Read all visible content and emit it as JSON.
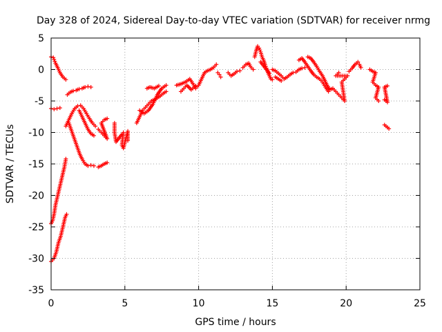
{
  "chart_data": {
    "type": "scatter",
    "title": "Day 328 of 2024, Sidereal Day-to-day VTEC variation (SDTVAR) for receiver nrmg",
    "xlabel": "GPS time / hours",
    "ylabel": "SDTVAR / TECUs",
    "xlim": [
      0,
      25
    ],
    "ylim": [
      -35,
      5
    ],
    "xticks": [
      0,
      5,
      10,
      15,
      20,
      25
    ],
    "yticks": [
      5,
      0,
      -5,
      -10,
      -15,
      -20,
      -25,
      -30,
      -35
    ],
    "grid": true,
    "marker": "+",
    "color": "#ff0000",
    "series": [
      {
        "name": "SDTVAR",
        "segments": [
          [
            [
              0.0,
              2.0
            ],
            [
              0.15,
              1.9
            ],
            [
              0.3,
              1.0
            ],
            [
              0.45,
              0.3
            ],
            [
              0.6,
              -0.5
            ],
            [
              0.8,
              -1.2
            ],
            [
              1.0,
              -1.6
            ]
          ],
          [
            [
              0.0,
              -6.2
            ],
            [
              0.2,
              -6.3
            ],
            [
              0.4,
              -6.2
            ],
            [
              0.6,
              -6.1
            ]
          ],
          [
            [
              0.0,
              -24.5
            ],
            [
              0.1,
              -24.0
            ],
            [
              0.2,
              -23.0
            ],
            [
              0.3,
              -21.5
            ],
            [
              0.45,
              -20.0
            ],
            [
              0.6,
              -18.5
            ],
            [
              0.75,
              -17.0
            ],
            [
              0.9,
              -15.5
            ],
            [
              1.0,
              -14.2
            ]
          ],
          [
            [
              0.0,
              -30.5
            ],
            [
              0.2,
              -30.0
            ],
            [
              0.35,
              -29.0
            ],
            [
              0.5,
              -27.5
            ],
            [
              0.65,
              -26.5
            ],
            [
              0.8,
              -25.0
            ],
            [
              0.95,
              -23.5
            ],
            [
              1.05,
              -23.0
            ]
          ],
          [
            [
              1.0,
              -9.0
            ],
            [
              1.2,
              -8.0
            ],
            [
              1.4,
              -7.0
            ],
            [
              1.6,
              -6.2
            ],
            [
              1.8,
              -5.8
            ],
            [
              2.0,
              -5.7
            ],
            [
              2.2,
              -6.2
            ],
            [
              2.4,
              -7.0
            ],
            [
              2.6,
              -7.8
            ],
            [
              2.8,
              -8.5
            ],
            [
              3.0,
              -9.0
            ]
          ],
          [
            [
              1.1,
              -4.0
            ],
            [
              1.3,
              -3.6
            ],
            [
              1.5,
              -3.4
            ],
            [
              1.7,
              -3.3
            ],
            [
              1.9,
              -3.1
            ],
            [
              2.1,
              -3.0
            ],
            [
              2.3,
              -2.8
            ],
            [
              2.5,
              -2.7
            ],
            [
              2.7,
              -2.8
            ]
          ],
          [
            [
              1.2,
              -8.5
            ],
            [
              1.35,
              -9.5
            ],
            [
              1.5,
              -10.5
            ],
            [
              1.65,
              -11.5
            ],
            [
              1.8,
              -12.5
            ],
            [
              1.95,
              -13.5
            ],
            [
              2.1,
              -14.2
            ],
            [
              2.3,
              -15.0
            ],
            [
              2.5,
              -15.3
            ],
            [
              2.7,
              -15.2
            ],
            [
              2.9,
              -15.3
            ]
          ],
          [
            [
              3.2,
              -15.5
            ],
            [
              3.4,
              -15.3
            ],
            [
              3.6,
              -15.0
            ],
            [
              3.8,
              -14.8
            ]
          ],
          [
            [
              1.9,
              -6.5
            ],
            [
              2.1,
              -7.5
            ],
            [
              2.3,
              -8.5
            ],
            [
              2.5,
              -9.5
            ],
            [
              2.7,
              -10.2
            ],
            [
              2.9,
              -10.5
            ]
          ],
          [
            [
              3.2,
              -9.5
            ],
            [
              3.4,
              -10.0
            ],
            [
              3.6,
              -10.5
            ],
            [
              3.8,
              -11.0
            ],
            [
              3.4,
              -8.5
            ],
            [
              3.6,
              -8.0
            ],
            [
              3.8,
              -7.8
            ]
          ],
          [
            [
              4.3,
              -8.5
            ],
            [
              4.3,
              -10.0
            ],
            [
              4.4,
              -11.5
            ],
            [
              4.8,
              -10.3
            ],
            [
              4.9,
              -10.0
            ],
            [
              4.8,
              -12.0
            ],
            [
              4.9,
              -12.5
            ],
            [
              5.2,
              -9.8
            ],
            [
              5.2,
              -11.3
            ]
          ],
          [
            [
              5.8,
              -8.5
            ],
            [
              6.0,
              -7.5
            ],
            [
              6.2,
              -6.5
            ],
            [
              6.4,
              -6.0
            ],
            [
              6.6,
              -5.5
            ],
            [
              6.8,
              -5.0
            ],
            [
              7.0,
              -4.8
            ],
            [
              7.2,
              -4.5
            ],
            [
              7.4,
              -4.2
            ],
            [
              7.6,
              -3.8
            ],
            [
              7.8,
              -3.5
            ]
          ],
          [
            [
              6.0,
              -6.5
            ],
            [
              6.3,
              -7.0
            ],
            [
              6.6,
              -6.5
            ],
            [
              6.9,
              -5.5
            ],
            [
              7.2,
              -4.0
            ],
            [
              7.5,
              -3.0
            ],
            [
              7.8,
              -2.5
            ]
          ],
          [
            [
              6.5,
              -3.0
            ],
            [
              6.7,
              -2.8
            ],
            [
              7.0,
              -3.0
            ],
            [
              7.3,
              -2.6
            ]
          ],
          [
            [
              8.5,
              -2.5
            ],
            [
              8.8,
              -2.3
            ],
            [
              9.1,
              -2.0
            ],
            [
              9.4,
              -1.5
            ],
            [
              9.6,
              -2.2
            ],
            [
              9.8,
              -3.0
            ],
            [
              10.0,
              -2.5
            ],
            [
              10.2,
              -1.5
            ],
            [
              10.4,
              -0.5
            ],
            [
              10.6,
              -0.2
            ],
            [
              10.8,
              0.0
            ],
            [
              11.0,
              0.3
            ],
            [
              11.2,
              0.8
            ]
          ],
          [
            [
              8.8,
              -3.5
            ],
            [
              9.0,
              -3.0
            ],
            [
              9.2,
              -2.5
            ],
            [
              9.5,
              -3.2
            ],
            [
              9.8,
              -2.6
            ]
          ],
          [
            [
              11.3,
              -0.5
            ],
            [
              11.4,
              -0.8
            ],
            [
              11.5,
              -1.2
            ]
          ],
          [
            [
              12.0,
              -0.5
            ],
            [
              12.2,
              -1.0
            ],
            [
              12.4,
              -0.7
            ],
            [
              12.6,
              -0.3
            ],
            [
              12.8,
              -0.2
            ]
          ],
          [
            [
              13.0,
              0.3
            ],
            [
              13.2,
              0.8
            ],
            [
              13.4,
              1.0
            ],
            [
              13.5,
              0.5
            ],
            [
              13.7,
              0.0
            ]
          ],
          [
            [
              13.8,
              2.0
            ],
            [
              13.9,
              3.0
            ],
            [
              14.0,
              3.7
            ],
            [
              14.1,
              3.4
            ],
            [
              14.2,
              2.8
            ],
            [
              14.3,
              2.0
            ],
            [
              14.4,
              1.5
            ],
            [
              14.5,
              0.8
            ],
            [
              14.6,
              0.2
            ],
            [
              14.7,
              -0.5
            ],
            [
              14.8,
              -1.0
            ],
            [
              14.9,
              -1.5
            ],
            [
              15.0,
              -1.6
            ]
          ],
          [
            [
              14.2,
              1.2
            ],
            [
              14.4,
              0.6
            ],
            [
              14.6,
              0.0
            ],
            [
              14.8,
              -0.6
            ]
          ],
          [
            [
              15.0,
              0.0
            ],
            [
              15.2,
              -0.2
            ],
            [
              15.4,
              -0.6
            ],
            [
              15.6,
              -1.0
            ],
            [
              15.8,
              -1.5
            ],
            [
              16.0,
              -1.2
            ],
            [
              16.2,
              -0.8
            ],
            [
              16.4,
              -0.5
            ],
            [
              16.6,
              -0.4
            ],
            [
              16.8,
              0.0
            ],
            [
              17.0,
              0.2
            ],
            [
              17.2,
              0.3
            ]
          ],
          [
            [
              15.2,
              -1.2
            ],
            [
              15.4,
              -1.5
            ],
            [
              15.6,
              -1.8
            ]
          ],
          [
            [
              16.8,
              1.5
            ],
            [
              17.0,
              1.8
            ],
            [
              17.2,
              1.2
            ],
            [
              17.4,
              0.5
            ],
            [
              17.6,
              -0.2
            ],
            [
              17.8,
              -0.8
            ],
            [
              18.0,
              -1.2
            ],
            [
              18.2,
              -1.5
            ],
            [
              18.4,
              -2.0
            ],
            [
              18.6,
              -2.8
            ],
            [
              18.8,
              -3.5
            ]
          ],
          [
            [
              17.4,
              2.0
            ],
            [
              17.6,
              1.8
            ],
            [
              17.8,
              1.2
            ],
            [
              18.0,
              0.5
            ],
            [
              18.2,
              -0.3
            ],
            [
              18.4,
              -1.0
            ],
            [
              18.6,
              -2.0
            ],
            [
              18.8,
              -3.0
            ]
          ],
          [
            [
              18.5,
              -1.5
            ],
            [
              18.7,
              -2.5
            ],
            [
              18.9,
              -3.2
            ],
            [
              19.1,
              -3.0
            ],
            [
              19.3,
              -3.5
            ],
            [
              19.5,
              -4.0
            ],
            [
              19.7,
              -4.5
            ],
            [
              19.9,
              -5.0
            ],
            [
              19.7,
              -2.0
            ],
            [
              19.9,
              -1.5
            ],
            [
              20.1,
              -1.0
            ],
            [
              19.3,
              -1.0
            ],
            [
              19.5,
              -0.5
            ]
          ],
          [
            [
              20.2,
              -0.3
            ],
            [
              20.4,
              0.2
            ],
            [
              20.6,
              0.8
            ],
            [
              20.8,
              1.2
            ],
            [
              20.9,
              0.8
            ],
            [
              21.0,
              0.3
            ]
          ],
          [
            [
              21.6,
              0.0
            ],
            [
              21.8,
              -0.3
            ],
            [
              22.0,
              -0.5
            ],
            [
              21.8,
              -2.0
            ],
            [
              22.0,
              -2.5
            ],
            [
              22.2,
              -2.8
            ],
            [
              22.0,
              -4.5
            ],
            [
              22.2,
              -5.0
            ]
          ],
          [
            [
              22.6,
              -4.8
            ],
            [
              22.8,
              -5.2
            ],
            [
              22.6,
              -2.8
            ],
            [
              22.8,
              -2.6
            ]
          ],
          [
            [
              22.6,
              -8.8
            ],
            [
              22.7,
              -9.0
            ],
            [
              22.8,
              -9.2
            ],
            [
              22.9,
              -9.4
            ]
          ]
        ]
      }
    ]
  }
}
